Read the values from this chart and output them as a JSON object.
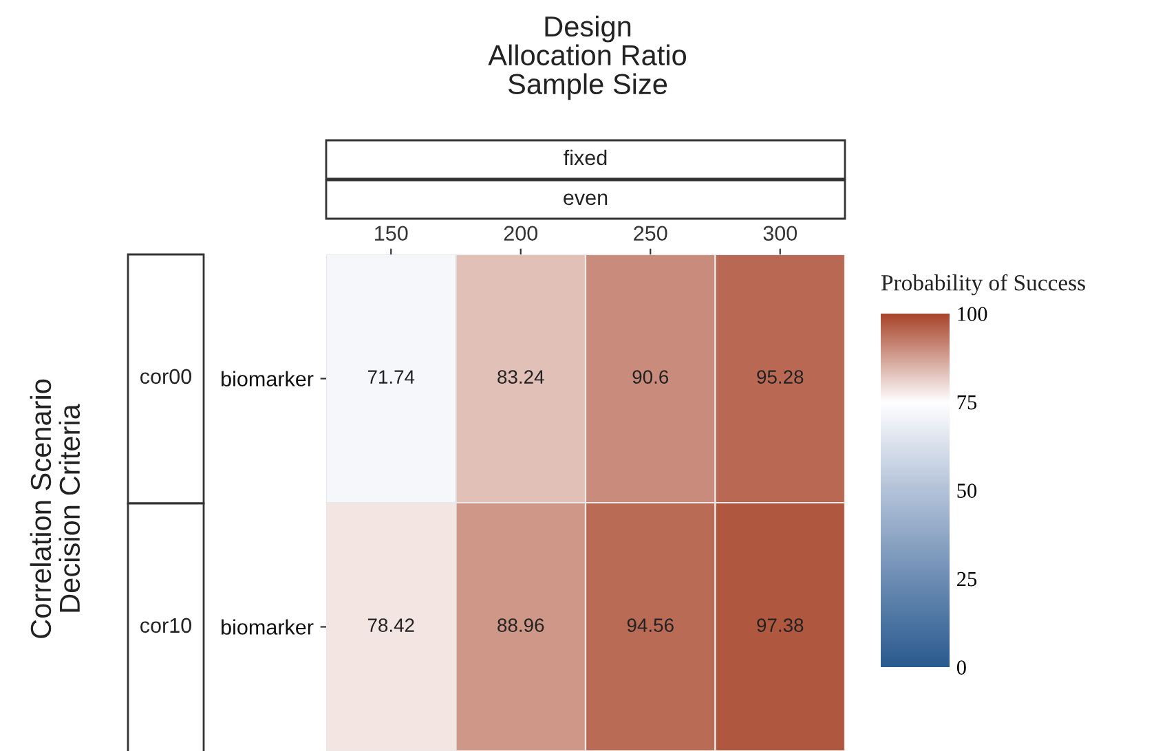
{
  "chart_data": {
    "type": "heatmap",
    "title": "Design\nAllocation Ratio\nSample Size",
    "ylabel": "Correlation Scenario\nDecision Criteria",
    "clabel": "Probability of Success",
    "annotations": [
      "fixed",
      "even"
    ],
    "categories": [
      "150",
      "200",
      "250",
      "300"
    ],
    "y_categories": [
      "biomarker",
      "biomarker"
    ],
    "y2_categories": [
      "cor00",
      "cor10"
    ],
    "cells": [
      [
        71.74,
        83.24,
        90.6,
        95.28
      ],
      [
        78.42,
        88.96,
        94.56,
        97.38
      ]
    ],
    "data_labels": true,
    "clim": [
      0,
      100
    ],
    "cticks": [
      0,
      25,
      50,
      75,
      100
    ],
    "colors": [
      "#2a5a8f",
      "#6d8db3",
      "#b3c2d9",
      "#ffffff",
      "#a8452b"
    ]
  }
}
